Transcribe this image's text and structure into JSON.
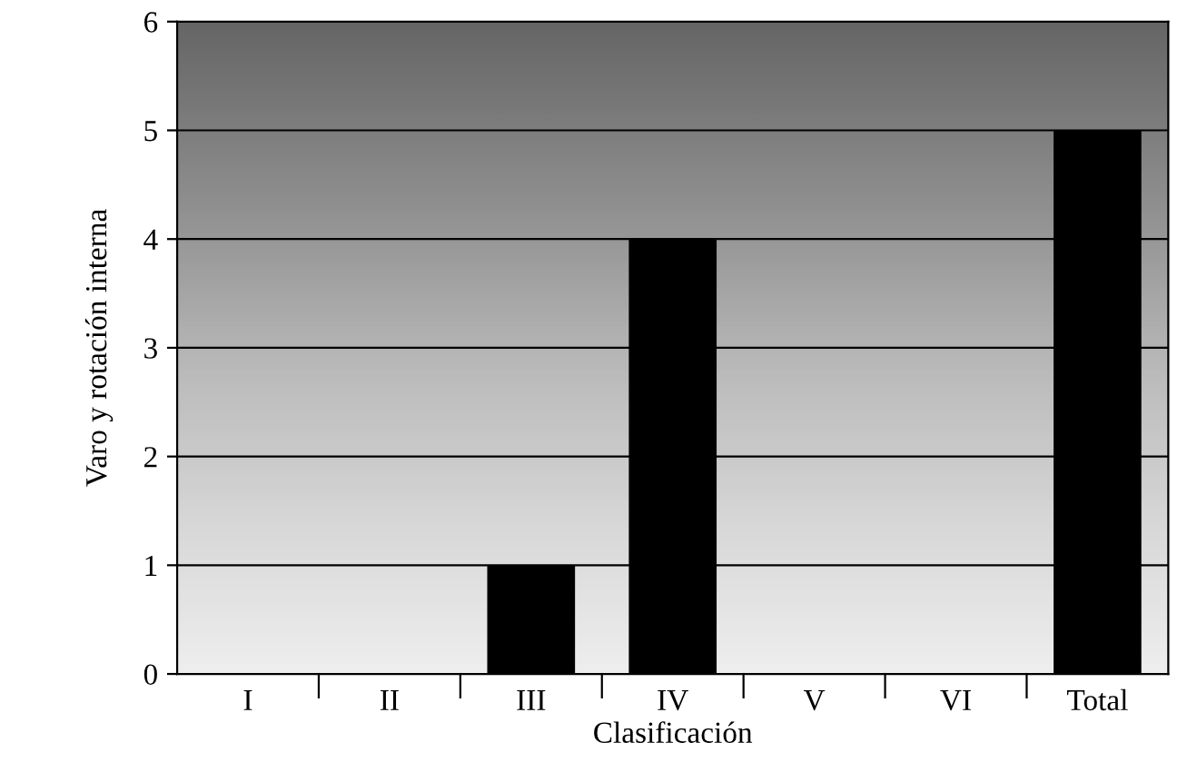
{
  "chart_data": {
    "type": "bar",
    "xlabel": "Clasificación",
    "ylabel": "Varo y rotación interna",
    "categories": [
      "I",
      "II",
      "III",
      "IV",
      "V",
      "VI",
      "Total"
    ],
    "values": [
      0,
      0,
      1,
      4,
      0,
      0,
      5
    ],
    "color": "#000000",
    "ylim": [
      0,
      6
    ],
    "yticks": [
      0,
      1,
      2,
      3,
      4,
      5,
      6
    ],
    "grid": "y",
    "legend": false
  }
}
